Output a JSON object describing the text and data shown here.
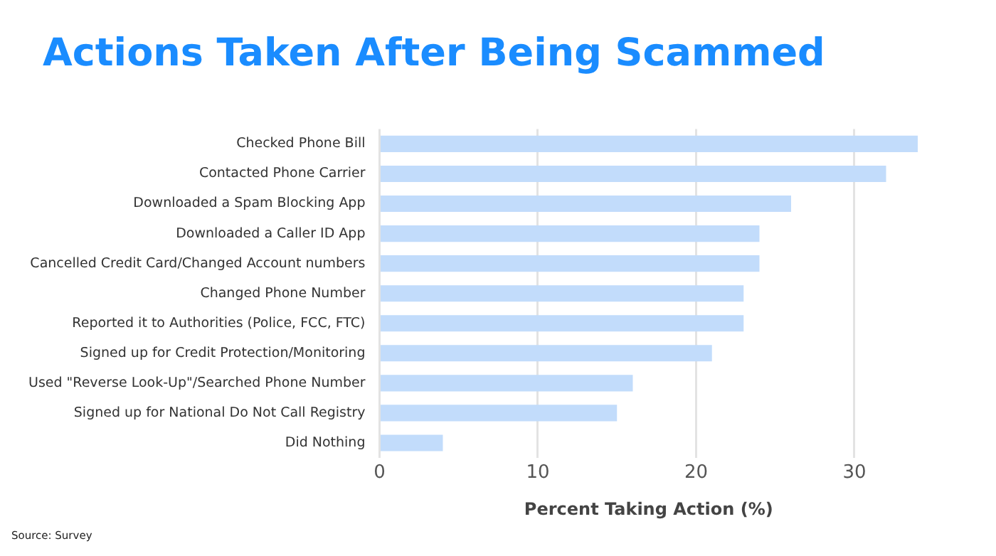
{
  "chart_data": {
    "type": "bar",
    "orientation": "horizontal",
    "title": "Actions Taken After Being Scammed",
    "xlabel": "Percent Taking Action (%)",
    "categories": [
      "Checked Phone Bill",
      "Contacted Phone Carrier",
      "Downloaded a Spam Blocking App",
      "Downloaded a Caller ID App",
      "Cancelled Credit Card/Changed Account numbers",
      "Changed Phone Number",
      "Reported it to Authorities (Police, FCC, FTC)",
      "Signed up for Credit Protection/Monitoring",
      "Used \"Reverse Look-Up\"/Searched Phone Number",
      "Signed up for National Do Not Call Registry",
      "Did Nothing"
    ],
    "values": [
      34,
      32,
      26,
      24,
      24,
      23,
      23,
      21,
      16,
      15,
      4
    ],
    "color": "#c2dcfb",
    "xlim": [
      0,
      34
    ],
    "xticks": [
      0,
      10,
      20,
      30
    ],
    "grid": "x",
    "legend": false,
    "annotations": [
      "Source: Survey"
    ]
  }
}
